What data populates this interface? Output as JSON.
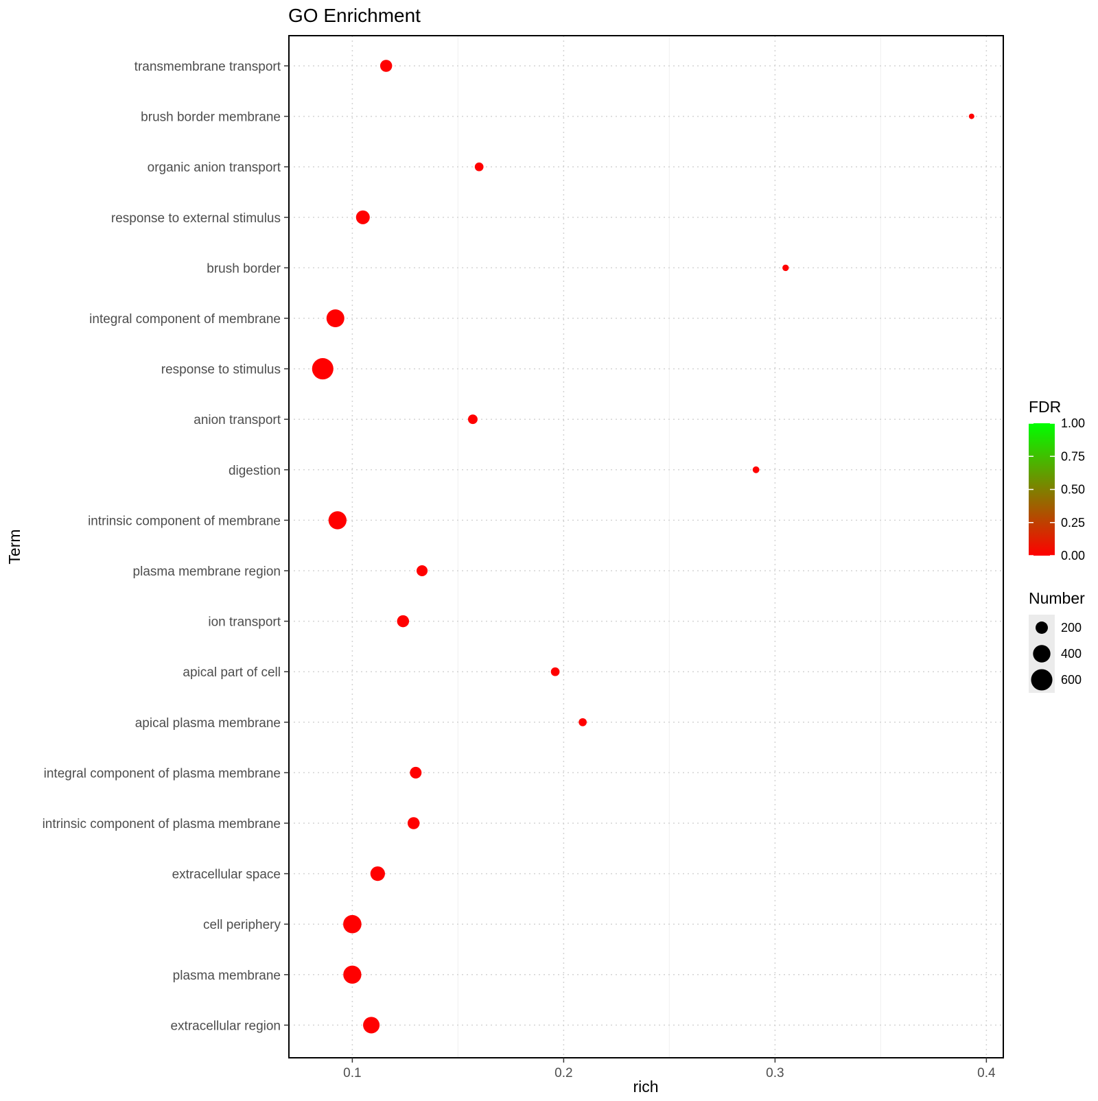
{
  "chart_data": {
    "type": "scatter",
    "title": "GO Enrichment",
    "xlabel": "rich",
    "ylabel": "Term",
    "xlim": [
      0.07,
      0.408
    ],
    "x_ticks": [
      0.1,
      0.2,
      0.3,
      0.4
    ],
    "x_tick_labels": [
      "0.1",
      "0.2",
      "0.3",
      "0.4"
    ],
    "grid": true,
    "point_color": "#ff0000",
    "points": [
      {
        "term": "transmembrane transport",
        "rich": 0.116,
        "number": 190,
        "fdr": 0.0
      },
      {
        "term": "brush border membrane",
        "rich": 0.393,
        "number": 30,
        "fdr": 0.0
      },
      {
        "term": "organic anion transport",
        "rich": 0.16,
        "number": 100,
        "fdr": 0.0
      },
      {
        "term": "response to external stimulus",
        "rich": 0.105,
        "number": 250,
        "fdr": 0.0
      },
      {
        "term": "brush border",
        "rich": 0.305,
        "number": 55,
        "fdr": 0.0
      },
      {
        "term": "integral component of membrane",
        "rich": 0.092,
        "number": 420,
        "fdr": 0.0
      },
      {
        "term": "response to stimulus",
        "rich": 0.086,
        "number": 600,
        "fdr": 0.0
      },
      {
        "term": "anion transport",
        "rich": 0.157,
        "number": 120,
        "fdr": 0.0
      },
      {
        "term": "digestion",
        "rich": 0.291,
        "number": 60,
        "fdr": 0.0
      },
      {
        "term": "intrinsic component of membrane",
        "rich": 0.093,
        "number": 430,
        "fdr": 0.0
      },
      {
        "term": "plasma membrane region",
        "rich": 0.133,
        "number": 160,
        "fdr": 0.0
      },
      {
        "term": "ion transport",
        "rich": 0.124,
        "number": 190,
        "fdr": 0.0
      },
      {
        "term": "apical part of cell",
        "rich": 0.196,
        "number": 100,
        "fdr": 0.0
      },
      {
        "term": "apical plasma membrane",
        "rich": 0.209,
        "number": 85,
        "fdr": 0.0
      },
      {
        "term": "integral component of plasma membrane",
        "rich": 0.13,
        "number": 180,
        "fdr": 0.0
      },
      {
        "term": "intrinsic component of plasma membrane",
        "rich": 0.129,
        "number": 190,
        "fdr": 0.0
      },
      {
        "term": "extracellular space",
        "rich": 0.112,
        "number": 280,
        "fdr": 0.0
      },
      {
        "term": "cell periphery",
        "rich": 0.1,
        "number": 440,
        "fdr": 0.0
      },
      {
        "term": "plasma membrane",
        "rich": 0.1,
        "number": 430,
        "fdr": 0.0
      },
      {
        "term": "extracellular region",
        "rich": 0.109,
        "number": 360,
        "fdr": 0.0
      }
    ],
    "color_legend": {
      "title": "FDR",
      "min": 0,
      "max": 1,
      "low_color": "#ff0000",
      "high_color": "#00ff00",
      "ticks": [
        {
          "value": 0,
          "label": "0.00"
        },
        {
          "value": 0.25,
          "label": "0.25"
        },
        {
          "value": 0.5,
          "label": "0.50"
        },
        {
          "value": 0.75,
          "label": "0.75"
        },
        {
          "value": 1,
          "label": "1.00"
        }
      ]
    },
    "size_legend": {
      "title": "Number",
      "entries": [
        {
          "value": 200,
          "label": "200"
        },
        {
          "value": 400,
          "label": "400"
        },
        {
          "value": 600,
          "label": "600"
        }
      ]
    },
    "legend_position": "right"
  }
}
